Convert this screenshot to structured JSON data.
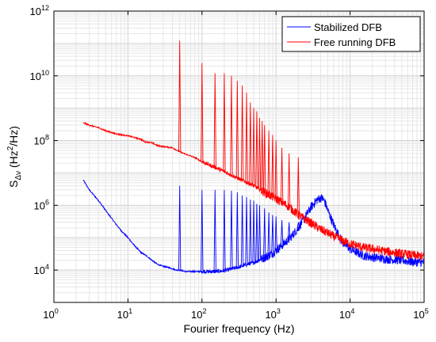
{
  "chart_data": {
    "type": "line",
    "title": "",
    "xlabel": "Fourier frequency (Hz)",
    "ylabel": {
      "main": "S",
      "subscript": "Δν",
      "paren_open": " (Hz",
      "superscript": "2",
      "paren_close": "/Hz)"
    },
    "xscale": "log",
    "yscale": "log",
    "xlim": [
      1,
      100000
    ],
    "ylim": [
      1000,
      1000000000000
    ],
    "x_ticks": [
      {
        "base": "10",
        "exp": "0"
      },
      {
        "base": "10",
        "exp": "1"
      },
      {
        "base": "10",
        "exp": "2"
      },
      {
        "base": "10",
        "exp": "3"
      },
      {
        "base": "10",
        "exp": "4"
      },
      {
        "base": "10",
        "exp": "5"
      }
    ],
    "y_ticks": [
      {
        "base": "10",
        "exp": "4"
      },
      {
        "base": "10",
        "exp": "6"
      },
      {
        "base": "10",
        "exp": "8"
      },
      {
        "base": "10",
        "exp": "10"
      },
      {
        "base": "10",
        "exp": "12"
      }
    ],
    "grid": "minor-log",
    "legend_position": "top-right",
    "series": [
      {
        "name": "Stabilized DFB",
        "color": "#0000ff",
        "x": [
          2.5,
          3,
          4,
          5,
          6,
          7,
          8,
          10,
          12,
          15,
          18,
          20,
          25,
          30,
          35,
          40,
          45,
          50,
          60,
          80,
          100,
          150,
          200,
          300,
          500,
          800,
          1000,
          1500,
          2000,
          2500,
          3000,
          3500,
          4000,
          4300,
          4600,
          5000,
          6000,
          7000,
          8000,
          10000,
          15000,
          20000,
          30000,
          50000,
          70000,
          100000
        ],
        "y": [
          6000000,
          3000000,
          1400000,
          700000,
          400000,
          250000,
          170000,
          100000,
          60000,
          35000,
          27000,
          22000,
          15000,
          13000,
          12000,
          11000,
          10000,
          10000,
          9000,
          9000,
          9000,
          9000,
          9500,
          12000,
          17000,
          28000,
          40000,
          90000,
          200000,
          450000,
          900000,
          1400000,
          1700000,
          1600000,
          1200000,
          700000,
          250000,
          120000,
          70000,
          45000,
          28000,
          25000,
          22000,
          20000,
          18000,
          17000
        ],
        "peaks": [
          {
            "x": 50,
            "y": 4000000
          },
          {
            "x": 100,
            "y": 3000000
          },
          {
            "x": 150,
            "y": 3000000
          },
          {
            "x": 200,
            "y": 3000000
          },
          {
            "x": 250,
            "y": 2800000
          },
          {
            "x": 300,
            "y": 2500000
          },
          {
            "x": 350,
            "y": 2000000
          },
          {
            "x": 400,
            "y": 1800000
          },
          {
            "x": 450,
            "y": 1500000
          },
          {
            "x": 500,
            "y": 1400000
          },
          {
            "x": 550,
            "y": 1100000
          },
          {
            "x": 600,
            "y": 1000000
          },
          {
            "x": 700,
            "y": 800000
          },
          {
            "x": 800,
            "y": 600000
          },
          {
            "x": 900,
            "y": 500000
          },
          {
            "x": 1000,
            "y": 450000
          },
          {
            "x": 1200,
            "y": 350000
          },
          {
            "x": 1500,
            "y": 300000
          },
          {
            "x": 2000,
            "y": 300000
          }
        ]
      },
      {
        "name": "Free running DFB",
        "color": "#ff0000",
        "x": [
          2.5,
          3,
          4,
          5,
          7,
          10,
          15,
          17,
          20,
          25,
          30,
          40,
          50,
          60,
          80,
          100,
          150,
          200,
          300,
          500,
          700,
          1000,
          1500,
          2000,
          3000,
          4000,
          5000,
          6000,
          7000,
          8000,
          10000,
          15000,
          20000,
          30000,
          50000,
          70000,
          100000
        ],
        "y": [
          350000000,
          300000000,
          250000000,
          200000000,
          160000000,
          140000000,
          110000000,
          90000000,
          90000000,
          70000000,
          65000000,
          60000000,
          45000000,
          38000000,
          30000000,
          22000000,
          15000000,
          11000000,
          7000000,
          4000000,
          2500000,
          1600000,
          900000,
          500000,
          280000,
          180000,
          140000,
          110000,
          95000,
          80000,
          65000,
          50000,
          45000,
          38000,
          32000,
          29000,
          26000
        ],
        "peaks": [
          {
            "x": 50,
            "y": 120000000000
          },
          {
            "x": 100,
            "y": 25000000000
          },
          {
            "x": 150,
            "y": 12000000000
          },
          {
            "x": 200,
            "y": 12000000000
          },
          {
            "x": 250,
            "y": 10000000000
          },
          {
            "x": 300,
            "y": 7000000000
          },
          {
            "x": 350,
            "y": 5000000000
          },
          {
            "x": 400,
            "y": 3000000000
          },
          {
            "x": 450,
            "y": 1500000000
          },
          {
            "x": 500,
            "y": 1000000000
          },
          {
            "x": 550,
            "y": 800000000
          },
          {
            "x": 600,
            "y": 500000000
          },
          {
            "x": 650,
            "y": 400000000
          },
          {
            "x": 700,
            "y": 300000000
          },
          {
            "x": 800,
            "y": 200000000
          },
          {
            "x": 900,
            "y": 150000000
          },
          {
            "x": 1000,
            "y": 100000000
          },
          {
            "x": 1200,
            "y": 60000000
          },
          {
            "x": 1500,
            "y": 40000000
          },
          {
            "x": 2000,
            "y": 30000000
          }
        ]
      }
    ]
  }
}
